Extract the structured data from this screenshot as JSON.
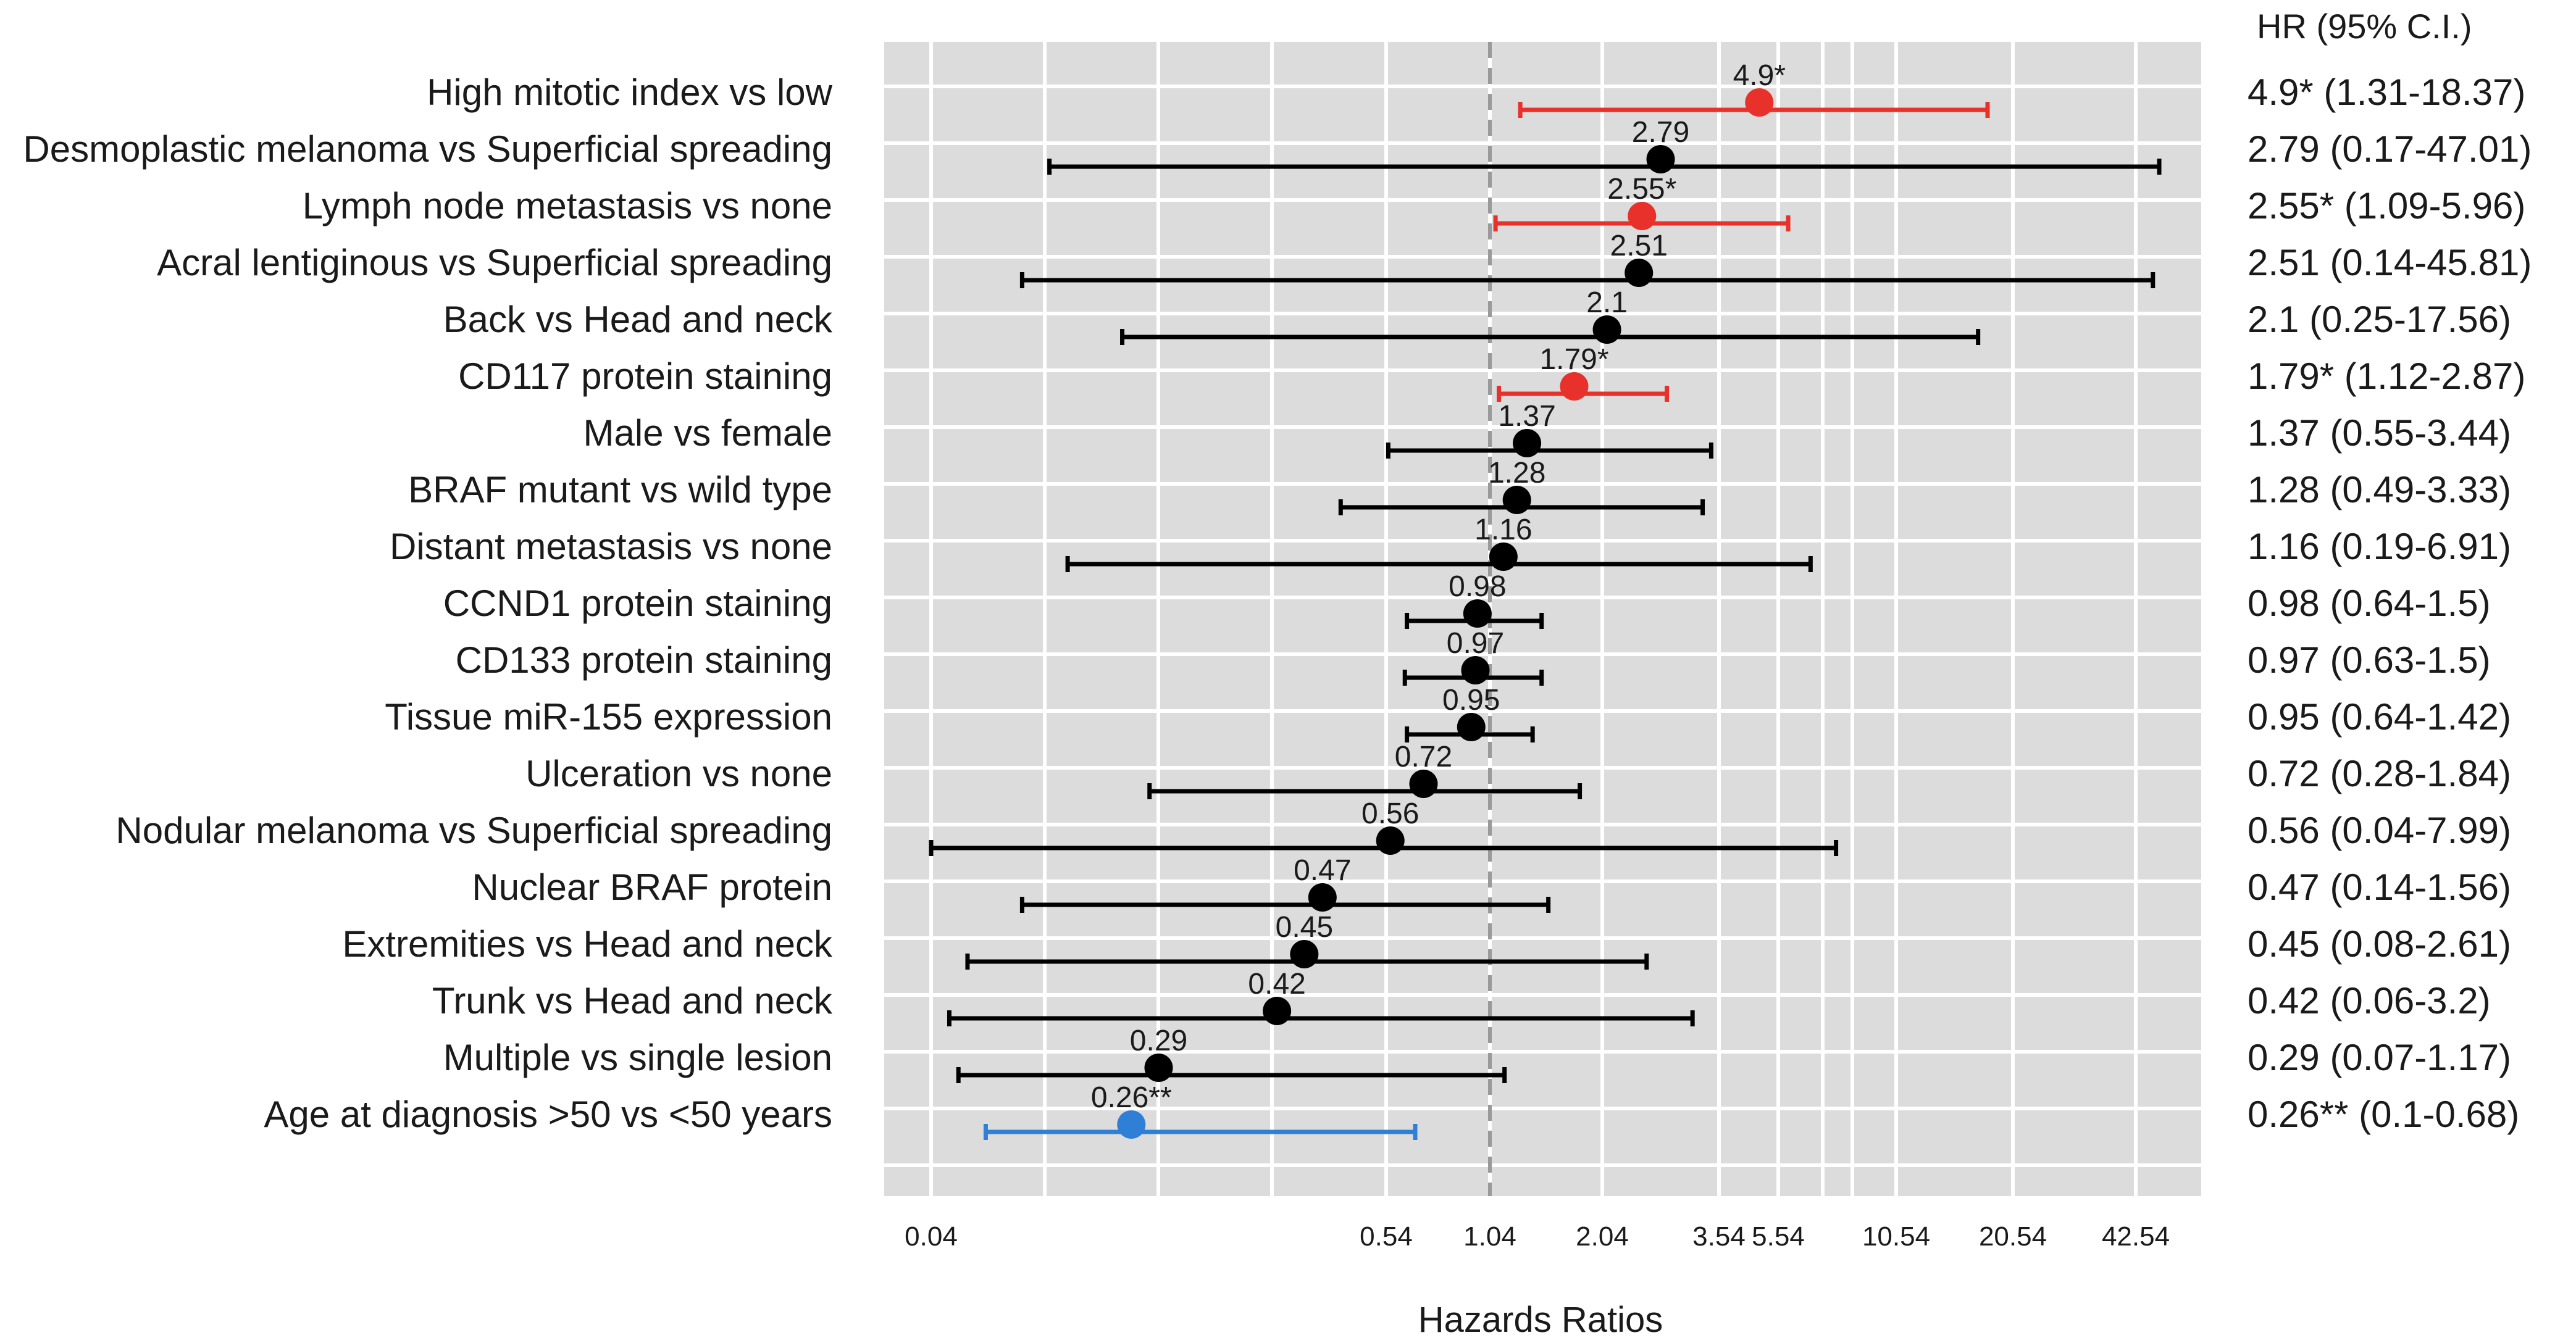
{
  "chart_data": {
    "type": "forest",
    "xlabel": "Hazards Ratios",
    "column_header": "HR (95% C.I.)",
    "reference_line": 1.04,
    "x_ticks": [
      "0.04",
      "0.54",
      "1.04",
      "2.04",
      "3.54",
      "5.54",
      "10.54",
      "20.54",
      "42.54"
    ],
    "colors": {
      "significant_high": "#e8312a",
      "significant_low": "#2f7fd6",
      "nonsignificant": "#000000"
    },
    "rows": [
      {
        "label": "High mitotic index vs low",
        "hr": 4.9,
        "lo": 1.31,
        "hi": 18.37,
        "point_label": "4.9*",
        "ci_text": "4.9* (1.31-18.37)",
        "sig": "high"
      },
      {
        "label": "Desmoplastic melanoma vs Superficial spreading",
        "hr": 2.79,
        "lo": 0.17,
        "hi": 47.01,
        "point_label": "2.79",
        "ci_text": "2.79 (0.17-47.01)",
        "sig": "none"
      },
      {
        "label": "Lymph node metastasis vs none",
        "hr": 2.55,
        "lo": 1.09,
        "hi": 5.96,
        "point_label": "2.55*",
        "ci_text": "2.55* (1.09-5.96)",
        "sig": "high"
      },
      {
        "label": "Acral lentiginous vs Superficial spreading",
        "hr": 2.51,
        "lo": 0.14,
        "hi": 45.81,
        "point_label": "2.51",
        "ci_text": "2.51 (0.14-45.81)",
        "sig": "none"
      },
      {
        "label": "Back vs Head and neck",
        "hr": 2.1,
        "lo": 0.25,
        "hi": 17.56,
        "point_label": "2.1",
        "ci_text": "2.1 (0.25-17.56)",
        "sig": "none"
      },
      {
        "label": "CD117 protein staining",
        "hr": 1.79,
        "lo": 1.12,
        "hi": 2.87,
        "point_label": "1.79*",
        "ci_text": "1.79* (1.12-2.87)",
        "sig": "high"
      },
      {
        "label": "Male vs female",
        "hr": 1.37,
        "lo": 0.55,
        "hi": 3.44,
        "point_label": "1.37",
        "ci_text": "1.37 (0.55-3.44)",
        "sig": "none"
      },
      {
        "label": "BRAF mutant vs wild type",
        "hr": 1.28,
        "lo": 0.49,
        "hi": 3.33,
        "point_label": "1.28",
        "ci_text": "1.28 (0.49-3.33)",
        "sig": "none"
      },
      {
        "label": "Distant metastasis vs none",
        "hr": 1.16,
        "lo": 0.19,
        "hi": 6.91,
        "point_label": "1.16",
        "ci_text": "1.16 (0.19-6.91)",
        "sig": "none"
      },
      {
        "label": "CCND1 protein staining",
        "hr": 0.98,
        "lo": 0.64,
        "hi": 1.5,
        "point_label": "0.98",
        "ci_text": "0.98 (0.64-1.5)",
        "sig": "none"
      },
      {
        "label": "CD133 protein staining",
        "hr": 0.97,
        "lo": 0.63,
        "hi": 1.5,
        "point_label": "0.97",
        "ci_text": "0.97 (0.63-1.5)",
        "sig": "none"
      },
      {
        "label": "Tissue miR-155 expression",
        "hr": 0.95,
        "lo": 0.64,
        "hi": 1.42,
        "point_label": "0.95",
        "ci_text": "0.95 (0.64-1.42)",
        "sig": "none"
      },
      {
        "label": "Ulceration vs none",
        "hr": 0.72,
        "lo": 0.28,
        "hi": 1.84,
        "point_label": "0.72",
        "ci_text": "0.72 (0.28-1.84)",
        "sig": "none"
      },
      {
        "label": "Nodular melanoma vs Superficial spreading",
        "hr": 0.56,
        "lo": 0.04,
        "hi": 7.99,
        "point_label": "0.56",
        "ci_text": "0.56 (0.04-7.99)",
        "sig": "none"
      },
      {
        "label": "Nuclear BRAF protein",
        "hr": 0.47,
        "lo": 0.14,
        "hi": 1.56,
        "point_label": "0.47",
        "ci_text": "0.47 (0.14-1.56)",
        "sig": "none"
      },
      {
        "label": "Extremities vs Head and neck",
        "hr": 0.45,
        "lo": 0.08,
        "hi": 2.61,
        "point_label": "0.45",
        "ci_text": "0.45 (0.08-2.61)",
        "sig": "none"
      },
      {
        "label": "Trunk vs Head and neck",
        "hr": 0.42,
        "lo": 0.06,
        "hi": 3.2,
        "point_label": "0.42",
        "ci_text": "0.42 (0.06-3.2)",
        "sig": "none"
      },
      {
        "label": "Multiple vs single lesion",
        "hr": 0.29,
        "lo": 0.07,
        "hi": 1.17,
        "point_label": "0.29",
        "ci_text": "0.29 (0.07-1.17)",
        "sig": "none"
      },
      {
        "label": "Age at diagnosis >50 vs <50 years",
        "hr": 0.26,
        "lo": 0.1,
        "hi": 0.68,
        "point_label": "0.26**",
        "ci_text": "0.26** (0.1-0.68)",
        "sig": "low"
      }
    ]
  }
}
